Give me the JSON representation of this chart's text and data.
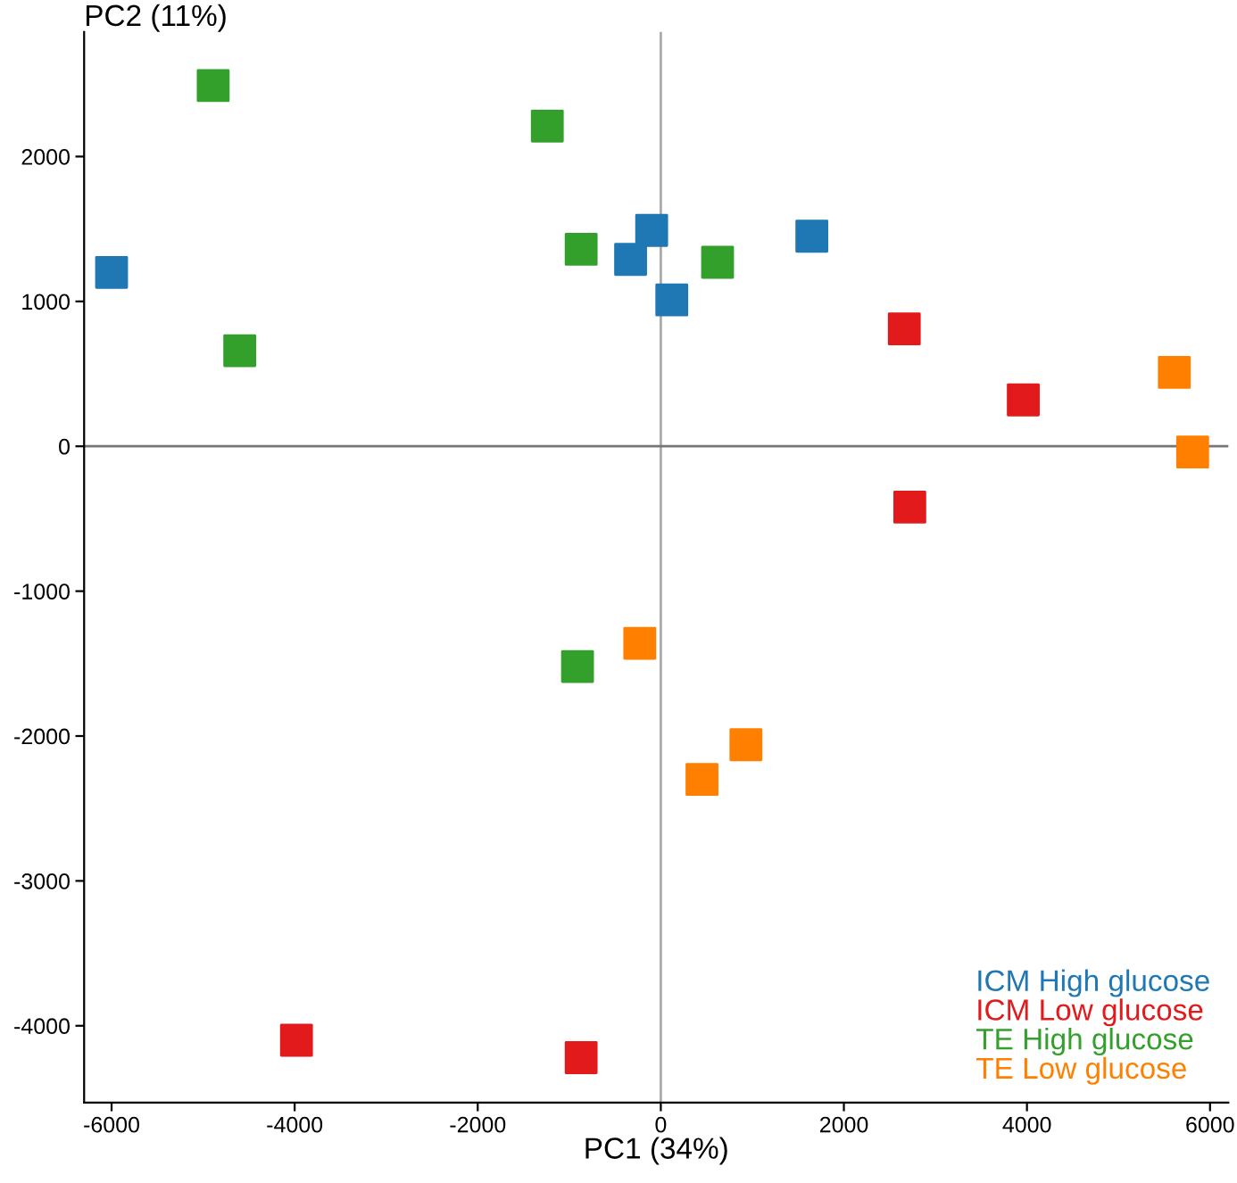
{
  "chart_data": {
    "type": "scatter",
    "xlabel": "PC1 (34%)",
    "ylabel": "PC2 (11%)",
    "marker": "square",
    "grid": false,
    "legend": "bottom right",
    "xlim": [
      -6300,
      6200
    ],
    "ylim": [
      -4530,
      2860
    ],
    "xticks": [
      -6000,
      -4000,
      -2000,
      0,
      2000,
      4000,
      6000
    ],
    "yticks": [
      -4000,
      -3000,
      -2000,
      -1000,
      0,
      1000,
      2000
    ],
    "ref_lines": [
      {
        "axis": "x",
        "value": 0,
        "color": "#aaaaaa"
      },
      {
        "axis": "y",
        "value": 0,
        "color": "#777777"
      }
    ],
    "series": [
      {
        "name": "ICM High glucose",
        "color": "#1f78b4",
        "x": [
          -6000,
          -100,
          -330,
          120,
          1650
        ],
        "values": [
          1200,
          1490,
          1290,
          1010,
          1450
        ]
      },
      {
        "name": "ICM Low glucose",
        "color": "#e31a1c",
        "x": [
          2660,
          3960,
          2720,
          -3980,
          -870
        ],
        "values": [
          810,
          320,
          -420,
          -4100,
          -4220
        ]
      },
      {
        "name": "TE High glucose",
        "color": "#33a02c",
        "x": [
          -4890,
          -1240,
          -870,
          620,
          -4600,
          -910
        ],
        "values": [
          2490,
          2210,
          1360,
          1270,
          660,
          -1520
        ]
      },
      {
        "name": "TE Low glucose",
        "color": "#ff7f00",
        "x": [
          5610,
          5810,
          -230,
          930,
          450
        ],
        "values": [
          510,
          -40,
          -1360,
          -2060,
          -2300
        ]
      }
    ]
  }
}
